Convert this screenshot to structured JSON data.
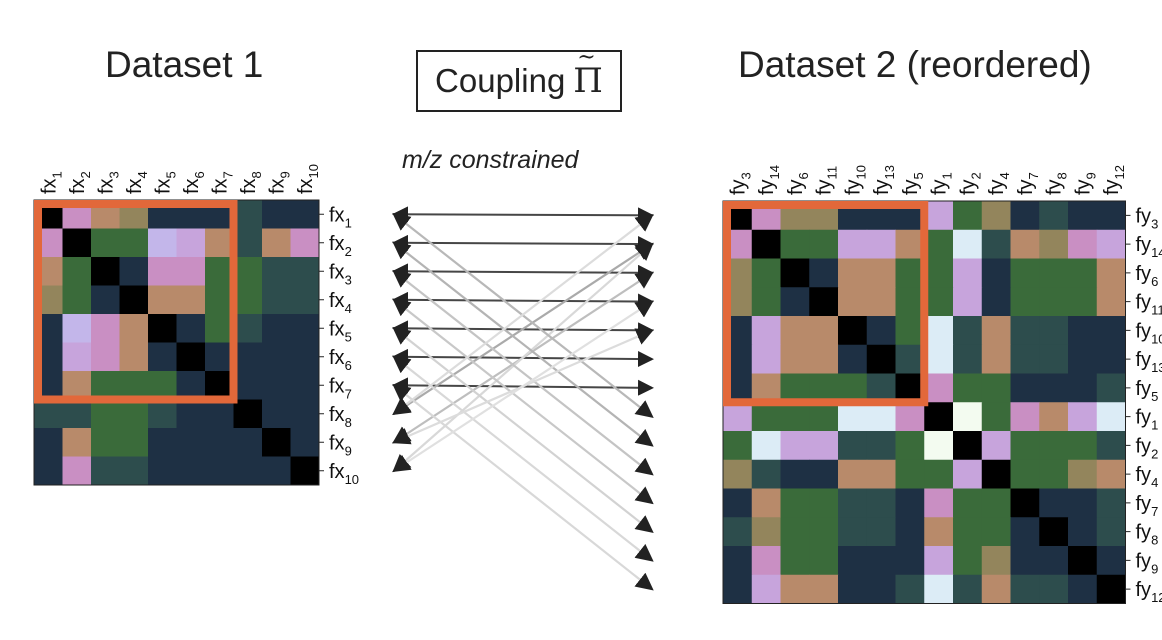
{
  "dataset1": {
    "title": "Dataset 1",
    "labels": [
      "1",
      "2",
      "3",
      "4",
      "5",
      "6",
      "7",
      "8",
      "9",
      "10"
    ],
    "prefix": "fx",
    "matrix": [
      [
        0,
        1,
        2,
        3,
        4,
        4,
        4,
        5,
        4,
        4
      ],
      [
        1,
        0,
        6,
        6,
        7,
        8,
        2,
        5,
        2,
        1
      ],
      [
        2,
        6,
        0,
        4,
        1,
        1,
        6,
        6,
        5,
        5
      ],
      [
        3,
        6,
        4,
        0,
        2,
        2,
        6,
        6,
        5,
        5
      ],
      [
        4,
        7,
        1,
        2,
        0,
        4,
        6,
        5,
        4,
        4
      ],
      [
        4,
        8,
        1,
        2,
        4,
        0,
        4,
        4,
        4,
        4
      ],
      [
        4,
        2,
        6,
        6,
        6,
        4,
        0,
        4,
        4,
        4
      ],
      [
        5,
        5,
        6,
        6,
        5,
        4,
        4,
        0,
        4,
        4
      ],
      [
        4,
        2,
        6,
        6,
        4,
        4,
        4,
        4,
        0,
        4
      ],
      [
        4,
        1,
        5,
        5,
        4,
        4,
        4,
        4,
        4,
        0
      ]
    ],
    "highlight_size": 7
  },
  "dataset2": {
    "title": "Dataset 2 (reordered)",
    "prefix": "fy",
    "labels": [
      "3",
      "14",
      "6",
      "11",
      "10",
      "13",
      "5",
      "1",
      "2",
      "4",
      "7",
      "8",
      "9",
      "12"
    ],
    "matrix": [
      [
        0,
        1,
        3,
        3,
        4,
        4,
        4,
        8,
        6,
        3,
        4,
        5,
        4,
        4
      ],
      [
        1,
        0,
        6,
        6,
        8,
        8,
        2,
        6,
        9,
        5,
        2,
        3,
        1,
        8
      ],
      [
        3,
        6,
        0,
        4,
        2,
        2,
        6,
        6,
        8,
        4,
        6,
        6,
        6,
        2
      ],
      [
        3,
        6,
        4,
        0,
        2,
        2,
        6,
        6,
        8,
        4,
        6,
        6,
        6,
        2
      ],
      [
        4,
        8,
        2,
        2,
        0,
        4,
        6,
        9,
        5,
        2,
        5,
        5,
        4,
        4
      ],
      [
        4,
        8,
        2,
        2,
        4,
        0,
        5,
        9,
        5,
        2,
        5,
        5,
        4,
        4
      ],
      [
        4,
        2,
        6,
        6,
        6,
        5,
        0,
        1,
        6,
        6,
        4,
        4,
        4,
        5
      ],
      [
        8,
        6,
        6,
        6,
        9,
        9,
        1,
        0,
        10,
        6,
        1,
        2,
        8,
        9
      ],
      [
        6,
        9,
        8,
        8,
        5,
        5,
        6,
        10,
        0,
        8,
        6,
        6,
        6,
        5
      ],
      [
        3,
        5,
        4,
        4,
        2,
        2,
        6,
        6,
        8,
        0,
        6,
        6,
        3,
        2
      ],
      [
        4,
        2,
        6,
        6,
        5,
        5,
        4,
        1,
        6,
        6,
        0,
        4,
        4,
        5
      ],
      [
        5,
        3,
        6,
        6,
        5,
        5,
        4,
        2,
        6,
        6,
        4,
        0,
        4,
        5
      ],
      [
        4,
        1,
        6,
        6,
        4,
        4,
        4,
        8,
        6,
        3,
        4,
        4,
        0,
        4
      ],
      [
        4,
        8,
        2,
        2,
        4,
        4,
        5,
        9,
        5,
        2,
        5,
        5,
        4,
        0
      ]
    ],
    "highlight_size": 7
  },
  "coupling": {
    "label": "Coupling",
    "symbol": "Π",
    "subtitle": "m/z constrained"
  },
  "palette": {
    "0": "#000000",
    "1": "#c98fc3",
    "2": "#b88a6a",
    "3": "#93855c",
    "4": "#1e3044",
    "5": "#2d4d4d",
    "6": "#3a6b3a",
    "7": "#c3b6ea",
    "8": "#c7a4dc",
    "9": "#dcecf6",
    "10": "#f3fbf0"
  },
  "highlight_color": "#e2683a",
  "arrows": [
    {
      "from": 0,
      "to": 0,
      "strength": 0.85
    },
    {
      "from": 1,
      "to": 1,
      "strength": 0.85
    },
    {
      "from": 2,
      "to": 2,
      "strength": 0.85
    },
    {
      "from": 3,
      "to": 3,
      "strength": 0.85
    },
    {
      "from": 4,
      "to": 4,
      "strength": 0.85
    },
    {
      "from": 5,
      "to": 5,
      "strength": 0.85
    },
    {
      "from": 6,
      "to": 6,
      "strength": 0.85
    },
    {
      "from": 7,
      "to": 1,
      "strength": 0.35
    },
    {
      "from": 8,
      "to": 2,
      "strength": 0.25
    },
    {
      "from": 9,
      "to": 1,
      "strength": 0.12
    },
    {
      "from": 0,
      "to": 7,
      "strength": 0.28
    },
    {
      "from": 1,
      "to": 8,
      "strength": 0.3
    },
    {
      "from": 2,
      "to": 9,
      "strength": 0.22
    },
    {
      "from": 3,
      "to": 10,
      "strength": 0.2
    },
    {
      "from": 4,
      "to": 11,
      "strength": 0.15
    },
    {
      "from": 5,
      "to": 12,
      "strength": 0.12
    },
    {
      "from": 6,
      "to": 13,
      "strength": 0.12
    },
    {
      "from": 7,
      "to": 0,
      "strength": 0.1
    },
    {
      "from": 8,
      "to": 4,
      "strength": 0.1
    },
    {
      "from": 9,
      "to": 3,
      "strength": 0.08
    }
  ]
}
